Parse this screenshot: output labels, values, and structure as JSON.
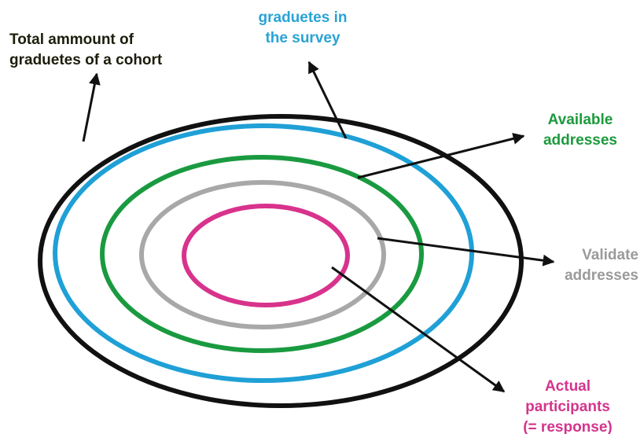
{
  "labels": [
    {
      "lines": [
        "Total ammount of",
        "graduetes of a cohort"
      ]
    },
    {
      "lines": [
        "graduetes in",
        "the survey"
      ]
    },
    {
      "lines": [
        "Available",
        "addresses"
      ]
    },
    {
      "lines": [
        "Validate",
        "addresses"
      ]
    },
    {
      "lines": [
        "Actual",
        "participants",
        "(= response)"
      ]
    }
  ]
}
